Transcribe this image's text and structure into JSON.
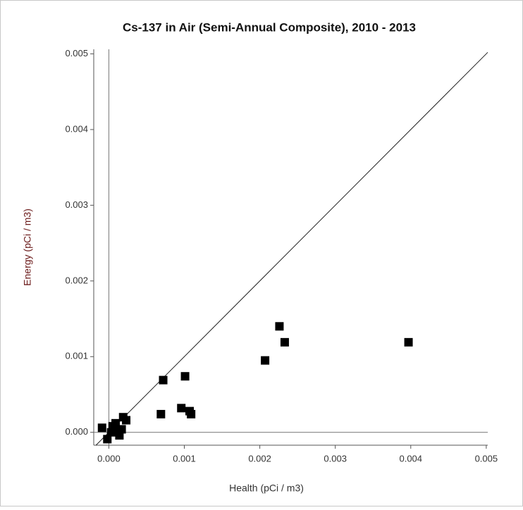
{
  "chart_data": {
    "type": "scatter",
    "title": "Cs-137 in Air (Semi-Annual Composite), 2010 - 2013",
    "x_label": "Health (pCi / m3)",
    "y_label": "Energy (pCi / m3)",
    "xlim": [
      -0.0002,
      0.00502
    ],
    "ylim": [
      -0.00017,
      0.00506
    ],
    "xticks": [
      {
        "value": 0,
        "label": "0.000"
      },
      0.001,
      0.002,
      0.003,
      0.004,
      0.005
    ],
    "yticks": [
      {
        "value": 0,
        "label": "0.000"
      },
      0.001,
      0.002,
      0.003,
      0.004,
      0.005
    ],
    "series": [
      {
        "color": "#000000",
        "x": [
          -9e-05,
          -2e-05,
          5e-05,
          9e-05,
          0.00014,
          0.00019,
          0.00023,
          0.00017,
          3e-05,
          0.00011,
          0.00072,
          0.00101,
          0.00069,
          0.00096,
          0.00107,
          0.00109,
          0.00207,
          0.00226,
          0.00233,
          0.00397
        ],
        "values": [
          6e-05,
          -9e-05,
          8e-05,
          0.00012,
          -4e-05,
          0.0002,
          0.00016,
          4e-05,
          0.0,
          2e-05,
          0.00069,
          0.00074,
          0.00024,
          0.00032,
          0.00028,
          0.00024,
          0.00095,
          0.0014,
          0.00119,
          0.00119
        ]
      }
    ]
  }
}
